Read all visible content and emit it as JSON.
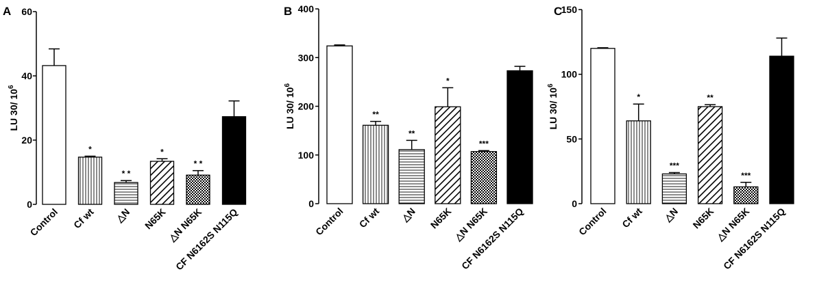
{
  "chart_data": [
    {
      "type": "bar",
      "panel": "A",
      "ylabel": "LU 30/ 10",
      "ylabel_sup": "6",
      "ylim": [
        0,
        60
      ],
      "yticks": [
        0,
        20,
        40,
        60
      ],
      "categories": [
        "Control",
        "Cf wt",
        "△N",
        "N65K",
        "△N N65K",
        "CF N6162S N115Q"
      ],
      "values": [
        43.2,
        14.7,
        6.8,
        13.4,
        9.1,
        27.3
      ],
      "errors": [
        5.2,
        0.3,
        0.6,
        0.8,
        1.4,
        4.9
      ],
      "significance": [
        "",
        "*",
        "* *",
        "*",
        "* *",
        ""
      ],
      "patterns": [
        "white",
        "vertical",
        "horizontal",
        "diagonal",
        "checker",
        "black"
      ],
      "grid": false
    },
    {
      "type": "bar",
      "panel": "B",
      "ylabel": "LU 30/ 10",
      "ylabel_sup": "6",
      "ylim": [
        0,
        400
      ],
      "yticks": [
        0,
        100,
        200,
        300,
        400
      ],
      "categories": [
        "Control",
        "Cf wt",
        "△N",
        "N65K",
        "△N N65K",
        "CF N6162S N115Q"
      ],
      "values": [
        324,
        161,
        111,
        199,
        107,
        273
      ],
      "errors": [
        2,
        8,
        19,
        39,
        2,
        9
      ],
      "significance": [
        "",
        "**",
        "**",
        "*",
        "***",
        ""
      ],
      "patterns": [
        "white",
        "vertical",
        "horizontal",
        "diagonal",
        "checker",
        "black"
      ],
      "grid": false
    },
    {
      "type": "bar",
      "panel": "C",
      "ylabel": "LU 30/ 10",
      "ylabel_sup": "6",
      "ylim": [
        0,
        150
      ],
      "yticks": [
        0,
        50,
        100,
        150
      ],
      "categories": [
        "Control",
        "Cf wt",
        "△N",
        "N65K",
        "△N N65K",
        "CF N6162S N115Q"
      ],
      "values": [
        120,
        64,
        23,
        75,
        13,
        114
      ],
      "errors": [
        0.5,
        13,
        1,
        1.5,
        3.5,
        14
      ],
      "significance": [
        "",
        "*",
        "***",
        "**",
        "***",
        ""
      ],
      "patterns": [
        "white",
        "vertical",
        "horizontal",
        "diagonal",
        "checker",
        "black"
      ],
      "grid": false
    }
  ]
}
